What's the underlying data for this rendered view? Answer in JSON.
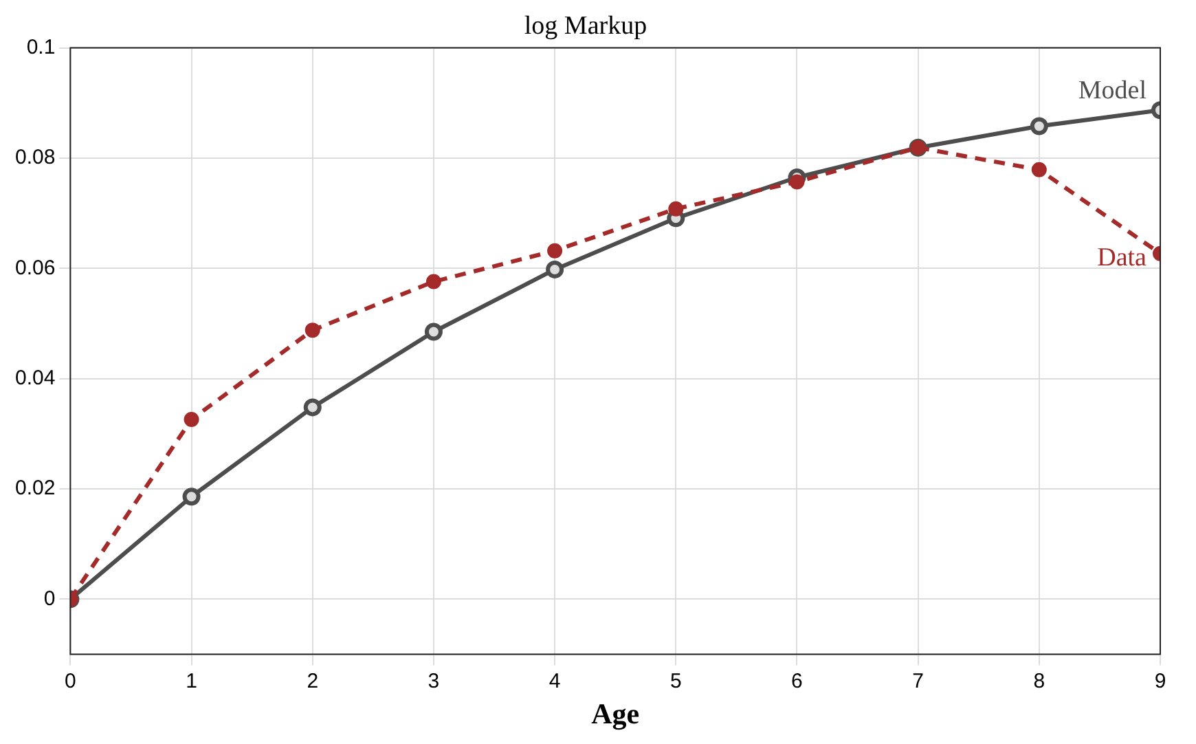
{
  "chart_data": {
    "type": "line",
    "title": "log Markup",
    "xlabel": "Age",
    "x": [
      0,
      1,
      2,
      3,
      4,
      5,
      6,
      7,
      8,
      9
    ],
    "series": [
      {
        "name": "Model",
        "color": "#4d4d4d",
        "line_style": "solid",
        "marker": "circle",
        "values": [
          0,
          0.0186,
          0.0348,
          0.0485,
          0.0598,
          0.0691,
          0.0765,
          0.0819,
          0.0858,
          0.0887
        ]
      },
      {
        "name": "Data",
        "color": "#a52a2a",
        "line_style": "dashed",
        "marker": "circle",
        "values": [
          0,
          0.0326,
          0.0488,
          0.0576,
          0.0632,
          0.0708,
          0.0757,
          0.0819,
          0.0779,
          0.0627
        ]
      }
    ],
    "xlim": [
      0,
      9
    ],
    "xticks": [
      0,
      1,
      2,
      3,
      4,
      5,
      6,
      7,
      8,
      9
    ],
    "ylim": [
      -0.01,
      0.1
    ],
    "yticks": [
      0,
      0.02,
      0.04,
      0.06,
      0.08,
      0.1
    ],
    "grid": true,
    "legend": false
  }
}
